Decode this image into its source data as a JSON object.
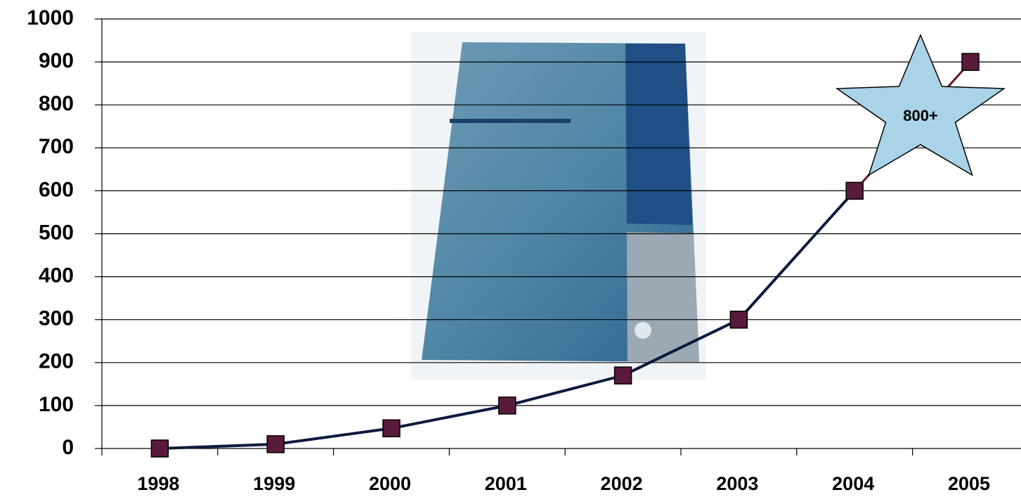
{
  "chart_data": {
    "type": "line",
    "categories": [
      "1998",
      "1999",
      "2000",
      "2001",
      "2002",
      "2003",
      "2004",
      "2005"
    ],
    "values": [
      0,
      10,
      47,
      100,
      170,
      300,
      600,
      900
    ],
    "line_color": "#0b1b3d",
    "projection_color": "#6b1424",
    "marker_color": "#5a1a3c",
    "ylim": [
      0,
      1000
    ],
    "yticks": [
      0,
      100,
      200,
      300,
      400,
      500,
      600,
      700,
      800,
      900,
      1000
    ],
    "grid": true,
    "annotation": "800+",
    "annotation_color": "#a9d3e6"
  }
}
